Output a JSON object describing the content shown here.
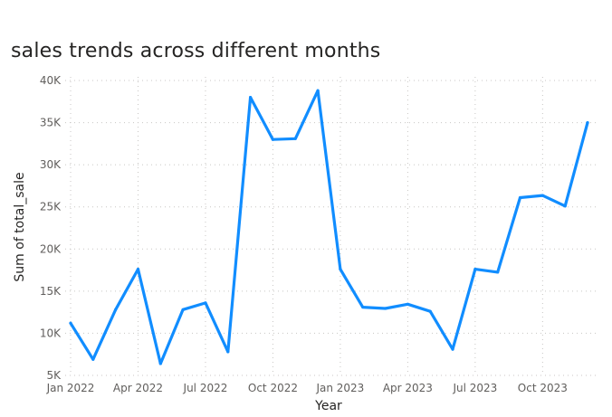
{
  "chart_data": {
    "type": "line",
    "title": "sales trends across different months",
    "xlabel": "Year",
    "ylabel": "Sum of total_sale",
    "x": [
      "2022-01",
      "2022-02",
      "2022-03",
      "2022-04",
      "2022-05",
      "2022-06",
      "2022-07",
      "2022-08",
      "2022-09",
      "2022-10",
      "2022-11",
      "2022-12",
      "2023-01",
      "2023-02",
      "2023-03",
      "2023-04",
      "2023-05",
      "2023-06",
      "2023-07",
      "2023-08",
      "2023-09",
      "2023-10",
      "2023-11",
      "2023-12"
    ],
    "x_tick_labels": [
      "Jan 2022",
      "Apr 2022",
      "Jul 2022",
      "Oct 2022",
      "Jan 2023",
      "Apr 2023",
      "Jul 2023",
      "Oct 2023"
    ],
    "y_ticks": [
      5000,
      10000,
      15000,
      20000,
      25000,
      30000,
      35000,
      40000
    ],
    "y_tick_labels": [
      "5K",
      "10K",
      "15K",
      "20K",
      "25K",
      "30K",
      "35K",
      "40K"
    ],
    "ylim": [
      5000,
      40000
    ],
    "series": [
      {
        "values": [
          11200,
          6900,
          12800,
          17600,
          6400,
          12800,
          13600,
          7800,
          38000,
          33000,
          33100,
          38800,
          17600,
          13100,
          12950,
          13450,
          12600,
          8100,
          17600,
          17250,
          26100,
          26350,
          25100,
          35000
        ]
      }
    ],
    "line_color": "#118dff",
    "grid": true
  }
}
